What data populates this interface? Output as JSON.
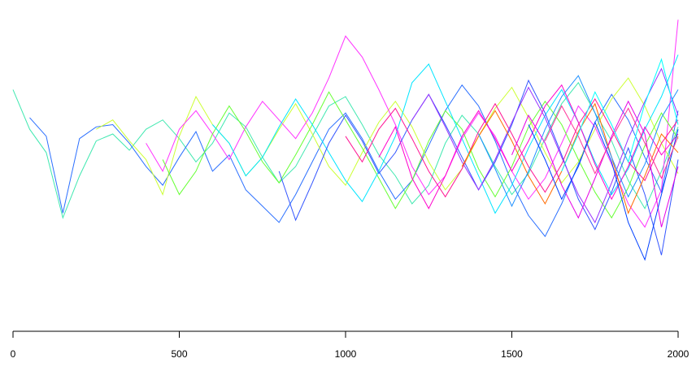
{
  "chart_data": {
    "type": "line",
    "x": [
      0,
      50,
      100,
      150,
      200,
      250,
      300,
      350,
      400,
      450,
      500,
      550,
      600,
      650,
      700,
      750,
      800,
      850,
      900,
      950,
      1000,
      1050,
      1100,
      1150,
      1200,
      1250,
      1300,
      1350,
      1400,
      1450,
      1500,
      1550,
      1600,
      1650,
      1700,
      1750,
      1800,
      1850,
      1900,
      1950,
      2000
    ],
    "xlim": [
      0,
      2000
    ],
    "xticks": [
      0,
      500,
      1000,
      1500,
      2000
    ],
    "ylim": [
      -5.5,
      6
    ],
    "series": [
      {
        "color": "#40e8b0",
        "values": [
          2.5,
          0.8,
          -0.2,
          -3.0,
          -1.2,
          0.3,
          0.6,
          -0.1,
          0.8,
          1.2,
          0.4,
          -0.6,
          0.2,
          1.5,
          0.9,
          -0.4,
          -1.5,
          -0.8,
          0.5,
          1.8,
          2.2,
          1.0,
          -0.3,
          -1.2,
          -2.4,
          -1.6,
          0.2,
          1.4,
          0.6,
          -0.8,
          -2.0,
          -1.1,
          0.4,
          1.9,
          2.8,
          1.5,
          0.3,
          -1.4,
          -2.6,
          -1.0,
          0.9
        ]
      },
      {
        "color": "#2a6fff",
        "values": [
          null,
          1.3,
          0.5,
          -2.8,
          0.4,
          0.9,
          1.0,
          0.2,
          -0.8,
          -1.6,
          -0.4,
          0.7,
          -1.0,
          -0.3,
          -1.8,
          -2.5,
          -3.2,
          -2.0,
          -0.6,
          0.8,
          1.5,
          0.4,
          -1.0,
          -2.2,
          -1.4,
          0.1,
          1.6,
          2.7,
          1.8,
          0.3,
          -1.5,
          -2.9,
          -3.8,
          -2.4,
          -0.7,
          1.1,
          2.3,
          1.2,
          -0.4,
          -1.9,
          1.6
        ]
      },
      {
        "color": "#ccff33",
        "values": [
          null,
          null,
          null,
          null,
          null,
          0.8,
          1.2,
          0.3,
          -0.5,
          -2.0,
          0.5,
          2.2,
          1.0,
          0.2,
          -1.2,
          -0.4,
          0.8,
          1.9,
          0.6,
          -0.8,
          -1.6,
          -0.2,
          1.1,
          2.0,
          0.9,
          -0.6,
          -1.8,
          -0.9,
          0.5,
          1.7,
          2.6,
          1.3,
          -0.2,
          -1.5,
          -0.6,
          0.8,
          2.1,
          3.0,
          1.8,
          0.2,
          -1.1
        ]
      },
      {
        "color": "#ff33ff",
        "values": [
          null,
          null,
          null,
          null,
          null,
          null,
          null,
          null,
          0.2,
          -1.0,
          0.8,
          1.6,
          0.6,
          -0.5,
          0.9,
          2.0,
          1.2,
          0.4,
          1.5,
          3.0,
          4.8,
          3.9,
          2.5,
          1.0,
          -0.8,
          -2.0,
          -1.2,
          0.4,
          1.5,
          0.5,
          -1.0,
          -2.2,
          -1.3,
          0.2,
          1.8,
          0.9,
          -0.7,
          -2.4,
          -3.4,
          -1.8,
          5.5
        ]
      },
      {
        "color": "#66ff33",
        "values": [
          null,
          null,
          null,
          null,
          null,
          null,
          null,
          null,
          null,
          -0.5,
          -2.0,
          -1.0,
          0.6,
          1.8,
          0.7,
          -0.6,
          -1.5,
          -0.3,
          1.0,
          2.4,
          1.2,
          0.0,
          -1.3,
          -2.6,
          -1.4,
          0.3,
          1.6,
          0.8,
          -0.9,
          -2.1,
          -0.8,
          0.9,
          2.0,
          1.0,
          -0.5,
          -1.9,
          -3.0,
          -1.7,
          0.1,
          1.5,
          0.4
        ]
      },
      {
        "color": "#00e5ff",
        "values": [
          null,
          null,
          null,
          null,
          null,
          null,
          null,
          null,
          null,
          null,
          null,
          null,
          1.0,
          0.2,
          -1.2,
          -0.4,
          0.9,
          2.1,
          1.0,
          -0.2,
          -1.4,
          -2.3,
          -1.0,
          0.5,
          2.8,
          3.6,
          2.0,
          0.4,
          -1.2,
          -2.8,
          -1.6,
          0.0,
          1.4,
          2.5,
          1.1,
          -0.6,
          -2.0,
          -0.9,
          0.8,
          2.2,
          4.0
        ]
      },
      {
        "color": "#3355ff",
        "values": [
          null,
          null,
          null,
          null,
          null,
          null,
          null,
          null,
          null,
          null,
          null,
          null,
          null,
          null,
          null,
          null,
          -1.0,
          -3.1,
          -1.5,
          0.2,
          1.4,
          0.3,
          -1.1,
          -0.2,
          1.2,
          2.3,
          1.0,
          -0.4,
          -1.8,
          -0.6,
          1.0,
          2.9,
          1.5,
          -0.3,
          -2.2,
          -3.5,
          -1.9,
          0.0,
          -2.0,
          -4.6,
          -0.5
        ]
      },
      {
        "color": "#ff1493",
        "values": [
          null,
          null,
          null,
          null,
          null,
          null,
          null,
          null,
          null,
          null,
          null,
          null,
          null,
          null,
          null,
          null,
          null,
          null,
          null,
          null,
          0.5,
          -0.6,
          0.8,
          1.7,
          0.4,
          -1.0,
          -2.1,
          -0.9,
          0.7,
          1.9,
          0.6,
          -0.8,
          -1.9,
          -0.7,
          1.0,
          2.1,
          0.8,
          -0.6,
          -1.4,
          0.2,
          1.2
        ]
      },
      {
        "color": "#ff00cc",
        "values": [
          null,
          null,
          null,
          null,
          null,
          null,
          null,
          null,
          null,
          null,
          null,
          null,
          null,
          null,
          null,
          null,
          null,
          null,
          null,
          null,
          null,
          null,
          -0.4,
          0.9,
          -1.3,
          -2.6,
          -1.2,
          0.5,
          1.6,
          0.4,
          -1.0,
          0.3,
          1.8,
          2.7,
          1.1,
          -0.7,
          -2.2,
          -0.8,
          0.9,
          -0.3,
          0.6
        ]
      },
      {
        "color": "#9933ff",
        "values": [
          null,
          null,
          null,
          null,
          null,
          null,
          null,
          null,
          null,
          null,
          null,
          null,
          null,
          null,
          null,
          null,
          null,
          null,
          null,
          null,
          null,
          null,
          null,
          null,
          1.2,
          2.3,
          0.9,
          -0.6,
          -1.8,
          -0.5,
          1.1,
          2.6,
          1.3,
          -0.4,
          -2.0,
          -3.2,
          -1.5,
          0.4,
          2.0,
          3.4,
          1.4
        ]
      },
      {
        "color": "#ff6a00",
        "values": [
          null,
          null,
          null,
          null,
          null,
          null,
          null,
          null,
          null,
          null,
          null,
          null,
          null,
          null,
          null,
          null,
          null,
          null,
          null,
          null,
          null,
          null,
          null,
          null,
          null,
          null,
          null,
          -0.8,
          0.5,
          1.6,
          0.3,
          -1.2,
          -2.4,
          -1.0,
          0.7,
          1.9,
          -0.4,
          -2.8,
          -1.2,
          0.6,
          -0.2
        ]
      },
      {
        "color": "#1e90ff",
        "values": [
          null,
          null,
          null,
          null,
          null,
          null,
          null,
          null,
          null,
          null,
          null,
          null,
          null,
          null,
          null,
          null,
          null,
          null,
          null,
          null,
          null,
          null,
          null,
          null,
          null,
          null,
          null,
          null,
          0.6,
          -0.9,
          -2.5,
          -1.0,
          0.8,
          2.2,
          3.1,
          1.5,
          -0.4,
          -2.1,
          -0.7,
          1.3,
          2.5
        ]
      },
      {
        "color": "#e600e6",
        "values": [
          null,
          null,
          null,
          null,
          null,
          null,
          null,
          null,
          null,
          null,
          null,
          null,
          null,
          null,
          null,
          null,
          null,
          null,
          null,
          null,
          null,
          null,
          null,
          null,
          null,
          null,
          null,
          null,
          null,
          null,
          -0.3,
          1.4,
          0.2,
          -1.6,
          -3.0,
          -1.3,
          0.5,
          2.0,
          0.6,
          -3.4,
          -0.8
        ]
      },
      {
        "color": "#0040ff",
        "values": [
          null,
          null,
          null,
          null,
          null,
          null,
          null,
          null,
          null,
          null,
          null,
          null,
          null,
          null,
          null,
          null,
          null,
          null,
          null,
          null,
          null,
          null,
          null,
          null,
          null,
          null,
          null,
          null,
          null,
          null,
          null,
          1.0,
          -0.5,
          -2.2,
          -0.8,
          1.1,
          -0.6,
          -3.2,
          -4.8,
          -2.0,
          0.8
        ]
      },
      {
        "color": "#ff3399",
        "values": [
          null,
          null,
          null,
          null,
          null,
          null,
          null,
          null,
          null,
          null,
          null,
          null,
          null,
          null,
          null,
          null,
          null,
          null,
          null,
          null,
          null,
          null,
          null,
          null,
          null,
          null,
          null,
          null,
          null,
          null,
          null,
          null,
          0.3,
          1.8,
          0.5,
          -1.1,
          0.4,
          1.7,
          0.2,
          -1.3,
          0.5
        ]
      },
      {
        "color": "#00ffff",
        "values": [
          null,
          null,
          null,
          null,
          null,
          null,
          null,
          null,
          null,
          null,
          null,
          null,
          null,
          null,
          null,
          null,
          null,
          null,
          null,
          null,
          null,
          null,
          null,
          null,
          null,
          null,
          null,
          null,
          null,
          null,
          null,
          null,
          null,
          -1.0,
          0.6,
          2.4,
          1.0,
          -0.6,
          1.9,
          3.8,
          1.0
        ]
      }
    ]
  }
}
